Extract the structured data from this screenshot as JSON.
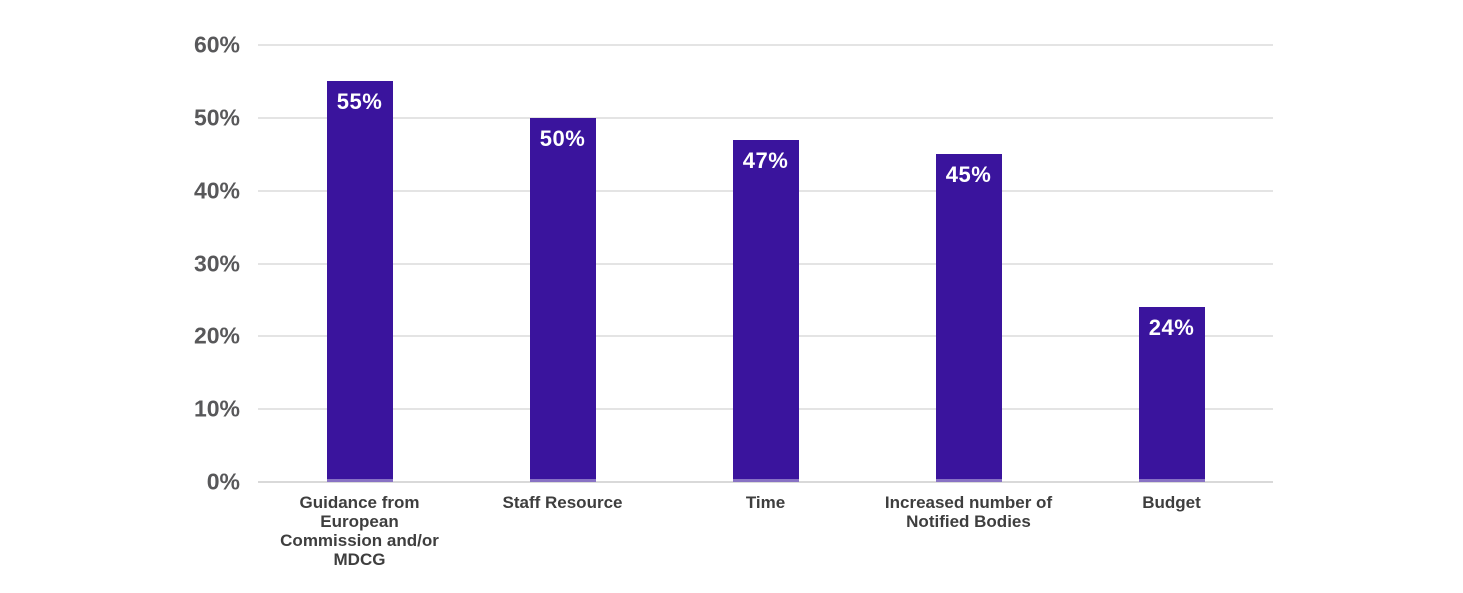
{
  "chart_data": {
    "type": "bar",
    "categories": [
      "Guidance from\nEuropean\nCommission and/or\nMDCG",
      "Staff Resource",
      "Time",
      "Increased number of\nNotified Bodies",
      "Budget"
    ],
    "values": [
      55,
      50,
      47,
      45,
      24
    ],
    "data_labels": [
      "55%",
      "50%",
      "47%",
      "45%",
      "24%"
    ],
    "title": "",
    "xlabel": "",
    "ylabel": "",
    "ylim": [
      0,
      60
    ],
    "yticks": [
      0,
      10,
      20,
      30,
      40,
      50,
      60
    ],
    "ytick_labels": [
      "0%",
      "10%",
      "20%",
      "30%",
      "40%",
      "50%",
      "60%"
    ],
    "grid": "horizontal",
    "legend": "none",
    "colors": {
      "bar": "#3a149d",
      "bar_label": "#ffffff",
      "ytick_label": "#58585a",
      "xtick_label": "#3e3e3e",
      "gridline": "#e4e4e4",
      "baseline": "#d9d9d9",
      "background": "#ffffff"
    }
  }
}
